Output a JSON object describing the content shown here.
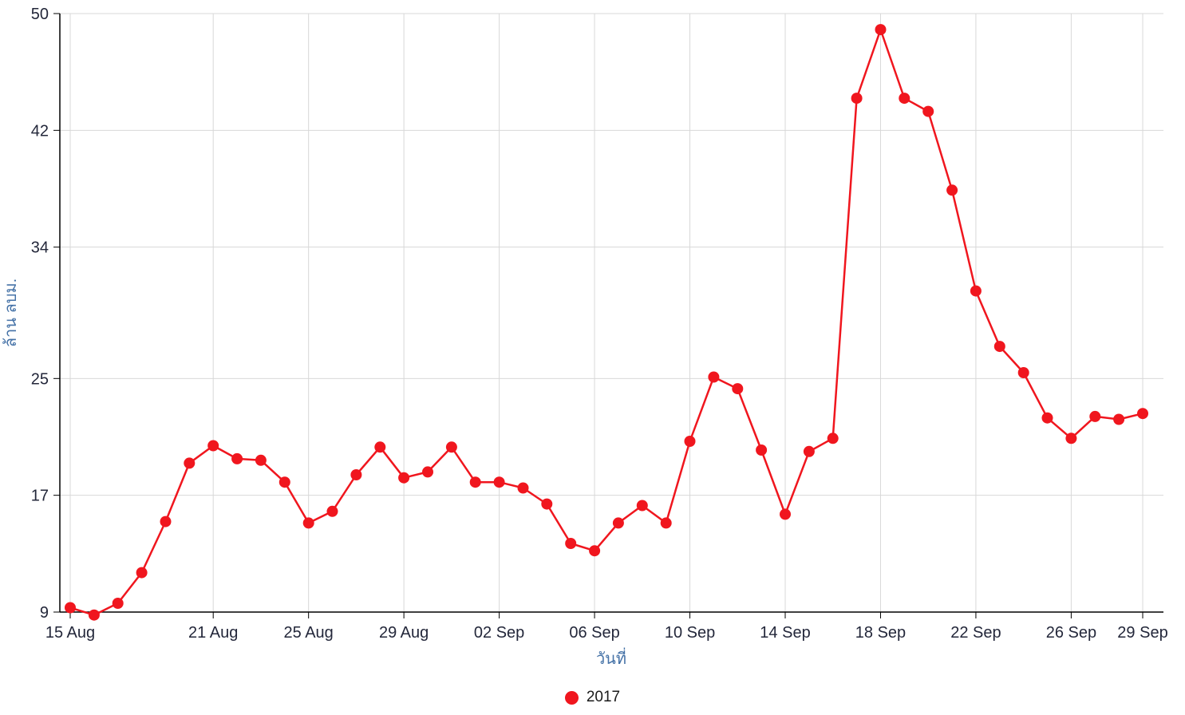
{
  "chart_data": {
    "type": "line",
    "title": "",
    "xlabel": "วันที่",
    "ylabel": "ล้าน ลบม.",
    "grid": true,
    "legend_position": "bottom-center",
    "ylim": [
      9,
      50
    ],
    "y_ticks": [
      9,
      17,
      25,
      34,
      42,
      50
    ],
    "x_tick_labels": [
      "15 Aug",
      "21 Aug",
      "25 Aug",
      "29 Aug",
      "02 Sep",
      "06 Sep",
      "10 Sep",
      "14 Sep",
      "18 Sep",
      "22 Sep",
      "26 Sep",
      "29 Sep"
    ],
    "x_tick_indices": [
      0,
      6,
      10,
      14,
      18,
      22,
      26,
      30,
      34,
      38,
      42,
      45
    ],
    "x": [
      "15 Aug",
      "16 Aug",
      "17 Aug",
      "18 Aug",
      "19 Aug",
      "20 Aug",
      "21 Aug",
      "22 Aug",
      "23 Aug",
      "24 Aug",
      "25 Aug",
      "26 Aug",
      "27 Aug",
      "28 Aug",
      "29 Aug",
      "30 Aug",
      "31 Aug",
      "01 Sep",
      "02 Sep",
      "03 Sep",
      "04 Sep",
      "05 Sep",
      "06 Sep",
      "07 Sep",
      "08 Sep",
      "09 Sep",
      "10 Sep",
      "11 Sep",
      "12 Sep",
      "13 Sep",
      "14 Sep",
      "15 Sep",
      "16 Sep",
      "17 Sep",
      "18 Sep",
      "19 Sep",
      "20 Sep",
      "21 Sep",
      "22 Sep",
      "23 Sep",
      "24 Sep",
      "25 Sep",
      "26 Sep",
      "27 Sep",
      "28 Sep",
      "29 Sep"
    ],
    "series": [
      {
        "name": "2017",
        "values": [
          9.3,
          8.8,
          9.6,
          11.7,
          15.2,
          19.2,
          20.4,
          19.5,
          19.4,
          17.9,
          15.1,
          15.9,
          18.4,
          20.3,
          18.2,
          18.6,
          20.3,
          17.9,
          17.9,
          17.5,
          16.4,
          13.7,
          13.2,
          15.1,
          16.3,
          15.1,
          20.7,
          25.1,
          24.3,
          20.1,
          15.7,
          20.0,
          20.9,
          44.2,
          48.9,
          44.2,
          43.3,
          37.9,
          31.0,
          27.2,
          25.4,
          22.3,
          20.9,
          22.4,
          22.2,
          22.6
        ]
      }
    ],
    "colors": {
      "series": "#f0161e",
      "grid": "#d8d8d8",
      "axis": "#000000",
      "tick_label": "#23273a",
      "axis_title": "#4572a7"
    }
  },
  "legend": {
    "label": "2017"
  }
}
